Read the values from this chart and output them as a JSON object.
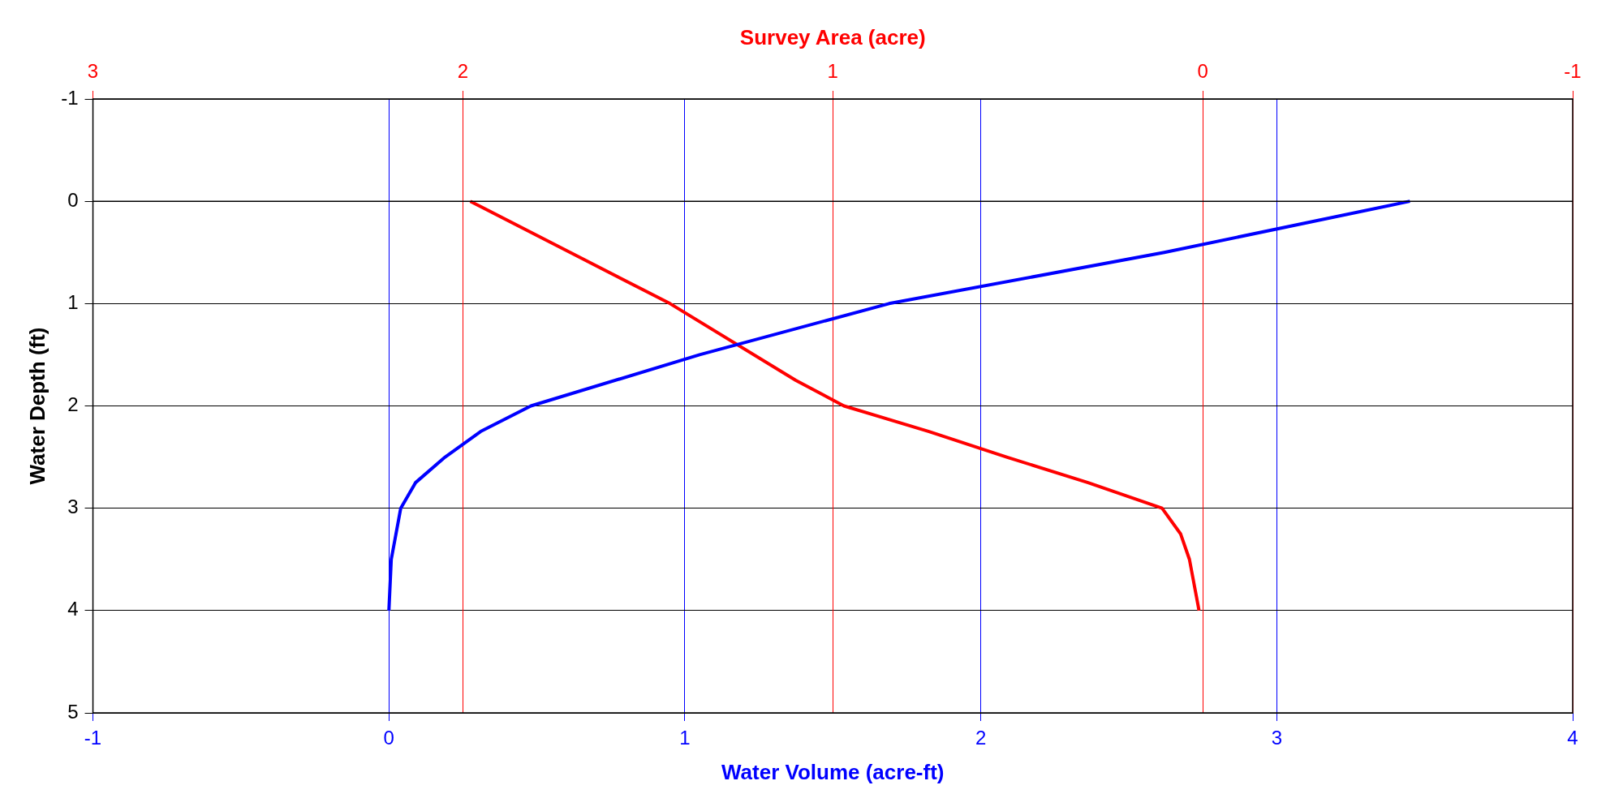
{
  "chart_data": {
    "type": "line",
    "xlabel": "Water Volume (acre-ft)",
    "x2label": "Survey Area (acre)",
    "ylabel": "Water Depth (ft)",
    "xlim": [
      -1,
      4
    ],
    "xticks": [
      -1,
      0,
      1,
      2,
      3,
      4
    ],
    "x2lim": [
      3,
      -1
    ],
    "x2ticks": [
      3,
      2,
      1,
      0,
      -1
    ],
    "ylim": [
      5,
      -1
    ],
    "yticks": [
      -1,
      0,
      1,
      2,
      3,
      4,
      5
    ],
    "grid": true,
    "legend": false,
    "marker": "none",
    "line_style": "solid",
    "ref_lines": [
      {
        "axis": "y",
        "value": 0,
        "color": "#000000"
      }
    ],
    "series": [
      {
        "color": "#0000ff",
        "x": [
          3.45,
          2.62,
          1.69,
          1.05,
          0.48,
          0.31,
          0.19,
          0.09,
          0.04,
          0.008,
          0
        ],
        "values": [
          0,
          0.5,
          1,
          1.5,
          2,
          2.25,
          2.5,
          2.75,
          3,
          3.5,
          4
        ]
      },
      {
        "color": "#ff0000",
        "axis": "x2",
        "x": [
          1.98,
          1.71,
          1.44,
          1.1,
          0.97,
          0.74,
          0.53,
          0.31,
          0.11,
          0.06,
          0.036,
          0.01
        ],
        "values": [
          0,
          0.5,
          1,
          1.75,
          2,
          2.25,
          2.5,
          2.75,
          3,
          3.25,
          3.5,
          4
        ]
      }
    ]
  }
}
